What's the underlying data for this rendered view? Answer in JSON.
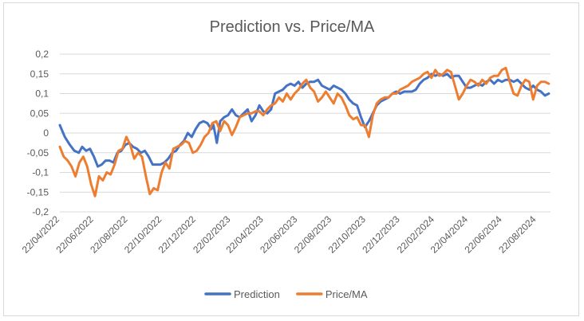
{
  "chart_data": {
    "type": "line",
    "title": "Prediction vs. Price/MA",
    "xlabel": "",
    "ylabel": "",
    "ylim": [
      -0.2,
      0.2
    ],
    "y_ticks": [
      "0,2",
      "0,15",
      "0,1",
      "0,05",
      "0",
      "-0,05",
      "-0,1",
      "-0,15",
      "-0,2"
    ],
    "x_ticks": [
      "22/04/2022",
      "22/06/2022",
      "22/08/2022",
      "22/10/2022",
      "22/12/2022",
      "22/02/2023",
      "22/04/2023",
      "22/06/2023",
      "22/08/2023",
      "22/10/2023",
      "22/12/2023",
      "22/02/2024",
      "22/04/2024",
      "22/06/2024",
      "22/08/2024"
    ],
    "grid": true,
    "legend_position": "bottom",
    "series": [
      {
        "name": "Prediction",
        "color": "#4472c4",
        "points": [
          [
            "2022-04-22",
            0.02
          ],
          [
            "2022-05-01",
            -0.01
          ],
          [
            "2022-05-10",
            -0.03
          ],
          [
            "2022-05-18",
            -0.045
          ],
          [
            "2022-05-26",
            -0.05
          ],
          [
            "2022-06-01",
            -0.035
          ],
          [
            "2022-06-08",
            -0.045
          ],
          [
            "2022-06-15",
            -0.04
          ],
          [
            "2022-06-22",
            -0.06
          ],
          [
            "2022-06-29",
            -0.085
          ],
          [
            "2022-07-06",
            -0.08
          ],
          [
            "2022-07-13",
            -0.07
          ],
          [
            "2022-07-20",
            -0.07
          ],
          [
            "2022-07-27",
            -0.075
          ],
          [
            "2022-08-03",
            -0.05
          ],
          [
            "2022-08-10",
            -0.045
          ],
          [
            "2022-08-17",
            -0.03
          ],
          [
            "2022-08-24",
            -0.025
          ],
          [
            "2022-08-31",
            -0.035
          ],
          [
            "2022-09-07",
            -0.04
          ],
          [
            "2022-09-14",
            -0.05
          ],
          [
            "2022-09-21",
            -0.045
          ],
          [
            "2022-09-28",
            -0.06
          ],
          [
            "2022-10-05",
            -0.08
          ],
          [
            "2022-10-12",
            -0.08
          ],
          [
            "2022-10-19",
            -0.08
          ],
          [
            "2022-10-26",
            -0.075
          ],
          [
            "2022-11-02",
            -0.065
          ],
          [
            "2022-11-09",
            -0.05
          ],
          [
            "2022-11-16",
            -0.045
          ],
          [
            "2022-11-23",
            -0.03
          ],
          [
            "2022-11-30",
            -0.02
          ],
          [
            "2022-12-07",
            0.0
          ],
          [
            "2022-12-14",
            -0.01
          ],
          [
            "2022-12-21",
            0.01
          ],
          [
            "2022-12-28",
            0.025
          ],
          [
            "2023-01-04",
            0.03
          ],
          [
            "2023-01-11",
            0.025
          ],
          [
            "2023-01-18",
            0.01
          ],
          [
            "2023-01-22",
            0.02
          ],
          [
            "2023-01-28",
            -0.025
          ],
          [
            "2023-02-03",
            0.03
          ],
          [
            "2023-02-10",
            0.04
          ],
          [
            "2023-02-17",
            0.045
          ],
          [
            "2023-02-24",
            0.06
          ],
          [
            "2023-03-03",
            0.045
          ],
          [
            "2023-03-10",
            0.04
          ],
          [
            "2023-03-17",
            0.05
          ],
          [
            "2023-03-24",
            0.06
          ],
          [
            "2023-03-31",
            0.03
          ],
          [
            "2023-04-07",
            0.045
          ],
          [
            "2023-04-14",
            0.07
          ],
          [
            "2023-04-21",
            0.055
          ],
          [
            "2023-04-28",
            0.05
          ],
          [
            "2023-05-05",
            0.06
          ],
          [
            "2023-05-12",
            0.1
          ],
          [
            "2023-05-19",
            0.105
          ],
          [
            "2023-05-26",
            0.11
          ],
          [
            "2023-06-02",
            0.12
          ],
          [
            "2023-06-09",
            0.125
          ],
          [
            "2023-06-16",
            0.12
          ],
          [
            "2023-06-23",
            0.13
          ],
          [
            "2023-06-30",
            0.115
          ],
          [
            "2023-07-07",
            0.125
          ],
          [
            "2023-07-14",
            0.13
          ],
          [
            "2023-07-21",
            0.13
          ],
          [
            "2023-07-28",
            0.135
          ],
          [
            "2023-08-04",
            0.12
          ],
          [
            "2023-08-11",
            0.115
          ],
          [
            "2023-08-18",
            0.11
          ],
          [
            "2023-08-25",
            0.12
          ],
          [
            "2023-09-01",
            0.115
          ],
          [
            "2023-09-08",
            0.11
          ],
          [
            "2023-09-15",
            0.1
          ],
          [
            "2023-09-22",
            0.085
          ],
          [
            "2023-09-29",
            0.075
          ],
          [
            "2023-10-06",
            0.07
          ],
          [
            "2023-10-13",
            0.04
          ],
          [
            "2023-10-20",
            0.015
          ],
          [
            "2023-10-27",
            0.03
          ],
          [
            "2023-11-03",
            0.05
          ],
          [
            "2023-11-10",
            0.07
          ],
          [
            "2023-11-17",
            0.08
          ],
          [
            "2023-11-24",
            0.085
          ],
          [
            "2023-12-01",
            0.09
          ],
          [
            "2023-12-08",
            0.1
          ],
          [
            "2023-12-15",
            0.105
          ],
          [
            "2023-12-22",
            0.1
          ],
          [
            "2023-12-29",
            0.105
          ],
          [
            "2024-01-05",
            0.105
          ],
          [
            "2024-01-12",
            0.105
          ],
          [
            "2024-01-19",
            0.11
          ],
          [
            "2024-01-26",
            0.125
          ],
          [
            "2024-02-02",
            0.135
          ],
          [
            "2024-02-09",
            0.14
          ],
          [
            "2024-02-16",
            0.15
          ],
          [
            "2024-02-23",
            0.145
          ],
          [
            "2024-03-01",
            0.15
          ],
          [
            "2024-03-08",
            0.145
          ],
          [
            "2024-03-15",
            0.15
          ],
          [
            "2024-03-22",
            0.14
          ],
          [
            "2024-03-29",
            0.145
          ],
          [
            "2024-04-05",
            0.145
          ],
          [
            "2024-04-12",
            0.13
          ],
          [
            "2024-04-19",
            0.115
          ],
          [
            "2024-04-26",
            0.115
          ],
          [
            "2024-05-03",
            0.12
          ],
          [
            "2024-05-10",
            0.125
          ],
          [
            "2024-05-17",
            0.12
          ],
          [
            "2024-05-24",
            0.13
          ],
          [
            "2024-05-31",
            0.135
          ],
          [
            "2024-06-07",
            0.125
          ],
          [
            "2024-06-14",
            0.135
          ],
          [
            "2024-06-21",
            0.13
          ],
          [
            "2024-06-28",
            0.135
          ],
          [
            "2024-07-05",
            0.135
          ],
          [
            "2024-07-12",
            0.13
          ],
          [
            "2024-07-19",
            0.135
          ],
          [
            "2024-07-26",
            0.125
          ],
          [
            "2024-08-02",
            0.115
          ],
          [
            "2024-08-09",
            0.11
          ],
          [
            "2024-08-16",
            0.12
          ],
          [
            "2024-08-23",
            0.11
          ],
          [
            "2024-08-30",
            0.105
          ],
          [
            "2024-09-06",
            0.095
          ],
          [
            "2024-09-13",
            0.1
          ]
        ]
      },
      {
        "name": "Price/MA",
        "color": "#ed7d31",
        "points": [
          [
            "2022-04-22",
            -0.035
          ],
          [
            "2022-04-29",
            -0.06
          ],
          [
            "2022-05-06",
            -0.07
          ],
          [
            "2022-05-13",
            -0.085
          ],
          [
            "2022-05-20",
            -0.11
          ],
          [
            "2022-05-27",
            -0.075
          ],
          [
            "2022-06-03",
            -0.06
          ],
          [
            "2022-06-10",
            -0.085
          ],
          [
            "2022-06-17",
            -0.13
          ],
          [
            "2022-06-24",
            -0.16
          ],
          [
            "2022-07-01",
            -0.11
          ],
          [
            "2022-07-08",
            -0.12
          ],
          [
            "2022-07-15",
            -0.1
          ],
          [
            "2022-07-22",
            -0.105
          ],
          [
            "2022-07-29",
            -0.08
          ],
          [
            "2022-08-05",
            -0.045
          ],
          [
            "2022-08-12",
            -0.04
          ],
          [
            "2022-08-19",
            -0.01
          ],
          [
            "2022-08-26",
            -0.03
          ],
          [
            "2022-09-02",
            -0.065
          ],
          [
            "2022-09-09",
            -0.05
          ],
          [
            "2022-09-16",
            -0.06
          ],
          [
            "2022-09-23",
            -0.11
          ],
          [
            "2022-09-30",
            -0.155
          ],
          [
            "2022-10-07",
            -0.14
          ],
          [
            "2022-10-14",
            -0.145
          ],
          [
            "2022-10-21",
            -0.1
          ],
          [
            "2022-10-28",
            -0.075
          ],
          [
            "2022-11-04",
            -0.09
          ],
          [
            "2022-11-11",
            -0.04
          ],
          [
            "2022-11-18",
            -0.035
          ],
          [
            "2022-11-25",
            -0.03
          ],
          [
            "2022-12-02",
            -0.02
          ],
          [
            "2022-12-09",
            -0.025
          ],
          [
            "2022-12-16",
            -0.05
          ],
          [
            "2022-12-23",
            -0.045
          ],
          [
            "2022-12-30",
            -0.03
          ],
          [
            "2023-01-06",
            -0.01
          ],
          [
            "2023-01-13",
            0.0
          ],
          [
            "2023-01-20",
            0.025
          ],
          [
            "2023-01-27",
            0.03
          ],
          [
            "2023-02-03",
            0.005
          ],
          [
            "2023-02-10",
            0.03
          ],
          [
            "2023-02-17",
            0.02
          ],
          [
            "2023-02-24",
            -0.005
          ],
          [
            "2023-03-03",
            0.015
          ],
          [
            "2023-03-10",
            0.04
          ],
          [
            "2023-03-17",
            0.045
          ],
          [
            "2023-03-24",
            0.05
          ],
          [
            "2023-03-31",
            0.05
          ],
          [
            "2023-04-07",
            0.055
          ],
          [
            "2023-04-14",
            0.055
          ],
          [
            "2023-04-21",
            0.045
          ],
          [
            "2023-04-28",
            0.06
          ],
          [
            "2023-05-05",
            0.07
          ],
          [
            "2023-05-12",
            0.075
          ],
          [
            "2023-05-19",
            0.09
          ],
          [
            "2023-05-26",
            0.08
          ],
          [
            "2023-06-02",
            0.1
          ],
          [
            "2023-06-09",
            0.085
          ],
          [
            "2023-06-16",
            0.1
          ],
          [
            "2023-06-23",
            0.11
          ],
          [
            "2023-06-30",
            0.125
          ],
          [
            "2023-07-07",
            0.135
          ],
          [
            "2023-07-14",
            0.115
          ],
          [
            "2023-07-21",
            0.105
          ],
          [
            "2023-07-28",
            0.08
          ],
          [
            "2023-08-04",
            0.09
          ],
          [
            "2023-08-11",
            0.105
          ],
          [
            "2023-08-18",
            0.09
          ],
          [
            "2023-08-25",
            0.075
          ],
          [
            "2023-09-01",
            0.1
          ],
          [
            "2023-09-08",
            0.09
          ],
          [
            "2023-09-15",
            0.07
          ],
          [
            "2023-09-22",
            0.045
          ],
          [
            "2023-09-29",
            0.035
          ],
          [
            "2023-10-06",
            0.04
          ],
          [
            "2023-10-13",
            0.02
          ],
          [
            "2023-10-20",
            0.02
          ],
          [
            "2023-10-27",
            -0.01
          ],
          [
            "2023-11-03",
            0.045
          ],
          [
            "2023-11-10",
            0.075
          ],
          [
            "2023-11-17",
            0.085
          ],
          [
            "2023-11-24",
            0.09
          ],
          [
            "2023-12-01",
            0.09
          ],
          [
            "2023-12-08",
            0.1
          ],
          [
            "2023-12-15",
            0.1
          ],
          [
            "2023-12-22",
            0.11
          ],
          [
            "2023-12-29",
            0.115
          ],
          [
            "2024-01-05",
            0.12
          ],
          [
            "2024-01-12",
            0.13
          ],
          [
            "2024-01-19",
            0.135
          ],
          [
            "2024-01-26",
            0.14
          ],
          [
            "2024-02-02",
            0.15
          ],
          [
            "2024-02-09",
            0.155
          ],
          [
            "2024-02-16",
            0.14
          ],
          [
            "2024-02-23",
            0.16
          ],
          [
            "2024-03-01",
            0.145
          ],
          [
            "2024-03-08",
            0.15
          ],
          [
            "2024-03-15",
            0.16
          ],
          [
            "2024-03-22",
            0.155
          ],
          [
            "2024-03-29",
            0.12
          ],
          [
            "2024-04-05",
            0.085
          ],
          [
            "2024-04-12",
            0.1
          ],
          [
            "2024-04-19",
            0.12
          ],
          [
            "2024-04-26",
            0.135
          ],
          [
            "2024-05-03",
            0.13
          ],
          [
            "2024-05-10",
            0.12
          ],
          [
            "2024-05-17",
            0.135
          ],
          [
            "2024-05-24",
            0.125
          ],
          [
            "2024-05-31",
            0.14
          ],
          [
            "2024-06-07",
            0.145
          ],
          [
            "2024-06-14",
            0.145
          ],
          [
            "2024-06-21",
            0.16
          ],
          [
            "2024-06-28",
            0.165
          ],
          [
            "2024-07-05",
            0.13
          ],
          [
            "2024-07-12",
            0.1
          ],
          [
            "2024-07-19",
            0.095
          ],
          [
            "2024-07-26",
            0.12
          ],
          [
            "2024-08-02",
            0.135
          ],
          [
            "2024-08-09",
            0.13
          ],
          [
            "2024-08-16",
            0.085
          ],
          [
            "2024-08-23",
            0.12
          ],
          [
            "2024-08-30",
            0.13
          ],
          [
            "2024-09-06",
            0.13
          ],
          [
            "2024-09-13",
            0.125
          ]
        ]
      }
    ]
  }
}
